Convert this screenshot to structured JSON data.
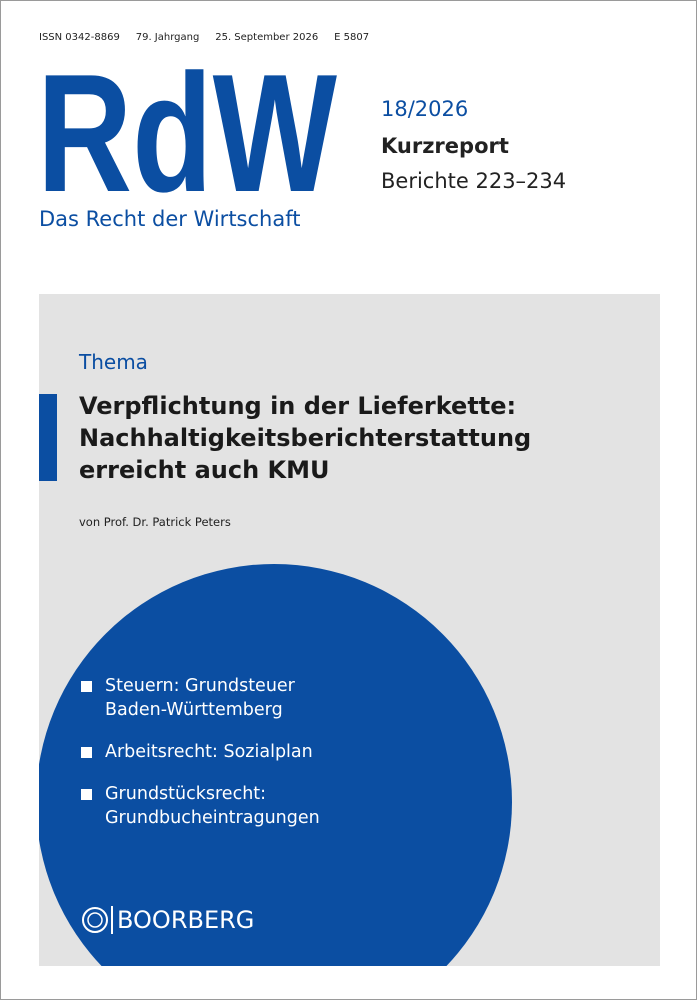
{
  "header": {
    "issn": "ISSN 0342-8869",
    "volume": "79. Jahrgang",
    "date": "25. September 2026",
    "code": "E 5807"
  },
  "masthead": {
    "logo": "RdW",
    "subtitle": "Das Recht der Wirtschaft",
    "issue": "18/2026",
    "section": "Kurzreport",
    "reports": "Berichte 223–234"
  },
  "feature": {
    "label": "Thema",
    "title_lines": [
      "Verpflichtung in der Lieferkette:",
      "Nachhaltigkeitsberichterstattung",
      "erreicht auch KMU"
    ],
    "author": "von Prof. Dr. Patrick Peters"
  },
  "topics": [
    [
      "Steuern: Grundsteuer",
      "Baden-Württemberg"
    ],
    [
      "Arbeitsrecht: Sozialplan"
    ],
    [
      "Grundstücksrecht:",
      "Grundbucheintragungen"
    ]
  ],
  "publisher": "BOORBERG"
}
